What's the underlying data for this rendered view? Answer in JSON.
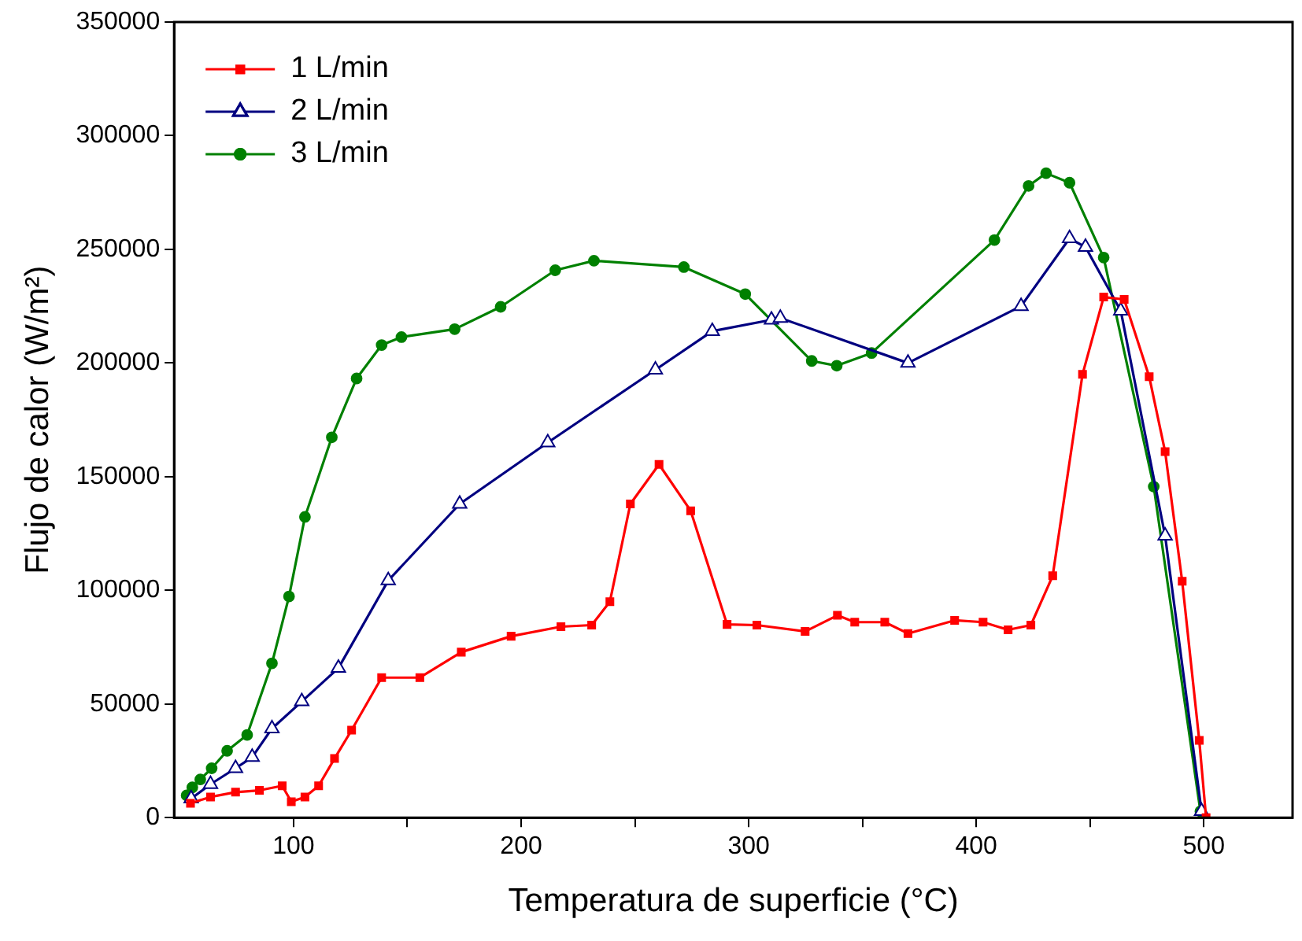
{
  "chart_data": {
    "type": "line",
    "xlabel": "Temperatura de superficie (°C)",
    "ylabel": "Flujo de calor (W/m²)",
    "xlim": [
      47.5,
      539
    ],
    "xticks": [
      100,
      {
        "value": 150,
        "label": null
      },
      200,
      {
        "value": 250,
        "label": null
      },
      300,
      {
        "value": 350,
        "label": null
      },
      400,
      {
        "value": 450,
        "label": null
      },
      500
    ],
    "ylim": [
      0,
      350000
    ],
    "yticks": [
      0,
      50000,
      100000,
      150000,
      200000,
      250000,
      300000,
      350000
    ],
    "grid": false,
    "legend": "top left",
    "series": [
      {
        "name": "1 L/min",
        "color": "#ff0000",
        "marker": "square",
        "x": [
          54.7,
          63.5,
          74.5,
          85,
          95,
          99,
          105,
          111,
          118,
          125.5,
          138.7,
          155.5,
          173.7,
          195.6,
          217.5,
          231,
          239,
          248,
          260.6,
          274.5,
          290.5,
          303.6,
          324.8,
          339,
          346.6,
          359.8,
          370,
          390.5,
          403,
          414,
          424,
          433.6,
          446.7,
          456,
          465,
          476,
          483,
          490.5,
          498,
          501
        ],
        "values": [
          6300,
          9100,
          11200,
          12000,
          14000,
          7000,
          9100,
          14000,
          26000,
          38500,
          61600,
          61600,
          72800,
          79800,
          84000,
          84700,
          95000,
          138000,
          155400,
          135000,
          85000,
          84700,
          81900,
          89000,
          86000,
          86000,
          81000,
          86800,
          86000,
          82600,
          84700,
          106400,
          195000,
          229000,
          228000,
          194000,
          161000,
          104000,
          34000,
          0
        ]
      },
      {
        "name": "2 L/min",
        "color": "#000080",
        "marker": "triangle",
        "x": [
          55,
          63.5,
          74.5,
          81.8,
          90.5,
          103.6,
          119.7,
          141.6,
          173,
          211.7,
          259,
          284,
          310,
          313.9,
          370,
          419.7,
          441,
          448,
          463.5,
          483,
          499
        ],
        "values": [
          8400,
          14700,
          21700,
          26600,
          39200,
          51100,
          65800,
          104300,
          138000,
          165000,
          197000,
          214000,
          219000,
          219800,
          200000,
          225000,
          254800,
          251000,
          223000,
          124000,
          2800
        ]
      },
      {
        "name": "3 L/min",
        "color": "#008000",
        "marker": "circle",
        "x": [
          53,
          55.5,
          59,
          64,
          70.8,
          79.6,
          90.5,
          98,
          105,
          116.8,
          127.7,
          138.7,
          147.4,
          170.8,
          191,
          215,
          232,
          271.5,
          298.5,
          327.7,
          338.7,
          354,
          408,
          423,
          430.7,
          441,
          456,
          478,
          498.5
        ],
        "values": [
          9800,
          13300,
          16800,
          21700,
          29400,
          36400,
          67900,
          97300,
          132300,
          167300,
          193200,
          207900,
          211400,
          214900,
          224700,
          240800,
          245000,
          242200,
          230300,
          200900,
          198800,
          204400,
          254100,
          277900,
          283500,
          279300,
          246400,
          145600,
          2800
        ]
      }
    ]
  }
}
